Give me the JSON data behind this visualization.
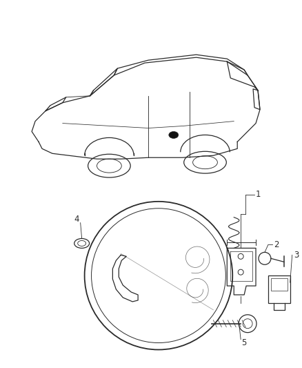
{
  "background_color": "#ffffff",
  "line_color": "#2a2a2a",
  "fig_width": 4.39,
  "fig_height": 5.33,
  "label_fontsize": 8.5
}
